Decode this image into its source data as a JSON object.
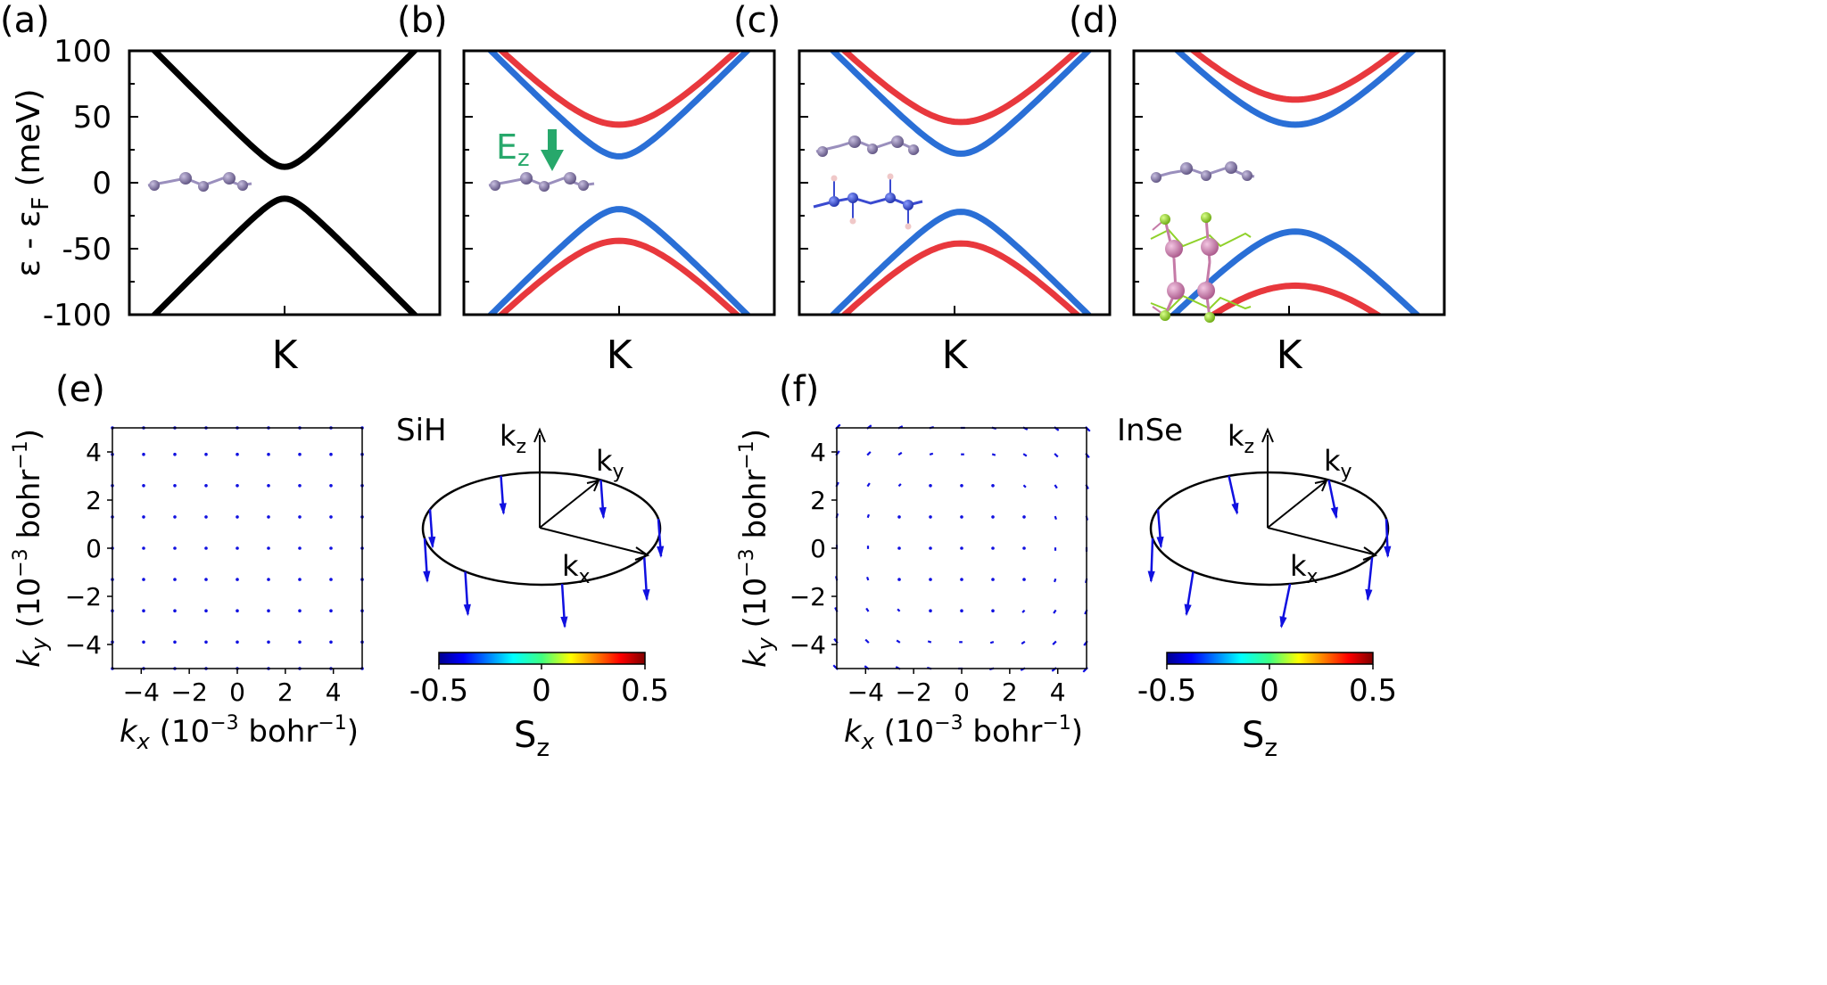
{
  "chart_data": [
    {
      "panel": "a",
      "label": "(a)",
      "type": "line",
      "ylabel": "ε - ε",
      "ylabel_sub": "F",
      "ylabel_unit": " (meV)",
      "ylim": [
        -100,
        100
      ],
      "yticks": [
        "100",
        "50",
        "0",
        "-50",
        "-100"
      ],
      "xlabel": "K",
      "series": [
        {
          "name": "conduction",
          "color": "#000000",
          "gap": 12,
          "xoff": 0.0,
          "left": 100,
          "right": 100
        },
        {
          "name": "valence",
          "color": "#000000",
          "gap": -12,
          "xoff": 0.0,
          "left": -100,
          "right": -100
        }
      ]
    },
    {
      "panel": "b",
      "label": "(b)",
      "type": "line",
      "xlabel": "K",
      "ylim": [
        -100,
        100
      ],
      "annotation": {
        "text": "E",
        "sub": "z"
      },
      "series": [
        {
          "name": "conduction spin-up",
          "color": "#e8383d",
          "gap": 44,
          "xoff": 0.0,
          "left": 100,
          "right": 100
        },
        {
          "name": "conduction spin-down",
          "color": "#2a6fd6",
          "gap": 20,
          "xoff": 0.0,
          "left": 100,
          "right": 100
        },
        {
          "name": "valence spin-down",
          "color": "#2a6fd6",
          "gap": -20,
          "xoff": 0.0,
          "left": -100,
          "right": -100
        },
        {
          "name": "valence spin-up",
          "color": "#e8383d",
          "gap": -44,
          "xoff": 0.0,
          "left": -100,
          "right": -100
        }
      ]
    },
    {
      "panel": "c",
      "label": "(c)",
      "type": "line",
      "xlabel": "K",
      "ylim": [
        -100,
        100
      ],
      "series": [
        {
          "name": "conduction spin-up",
          "color": "#e8383d",
          "gap": 46,
          "xoff": 0.02,
          "left": 100,
          "right": 100
        },
        {
          "name": "conduction spin-down",
          "color": "#2a6fd6",
          "gap": 22,
          "xoff": 0.02,
          "left": 100,
          "right": 100
        },
        {
          "name": "valence spin-down",
          "color": "#2a6fd6",
          "gap": -22,
          "xoff": 0.02,
          "left": -100,
          "right": -100
        },
        {
          "name": "valence spin-up",
          "color": "#e8383d",
          "gap": -46,
          "xoff": 0.02,
          "left": -100,
          "right": -100
        }
      ]
    },
    {
      "panel": "d",
      "label": "(d)",
      "type": "line",
      "xlabel": "K",
      "ylim": [
        -100,
        100
      ],
      "series": [
        {
          "name": "conduction spin-up",
          "color": "#e8383d",
          "gap": 63,
          "xoff": 0.02,
          "left": 100,
          "right": 100
        },
        {
          "name": "conduction spin-down",
          "color": "#2a6fd6",
          "gap": 44,
          "xoff": 0.02,
          "left": 100,
          "right": 100
        },
        {
          "name": "valence spin-down",
          "color": "#2a6fd6",
          "gap": -37,
          "xoff": 0.02,
          "left": -100,
          "right": -100
        },
        {
          "name": "valence spin-up",
          "color": "#e8383d",
          "gap": -78,
          "xoff": 0.02,
          "left": -100,
          "right": -100
        }
      ]
    },
    {
      "panel": "e",
      "label": "(e)",
      "type": "quiver",
      "xlabel": "k",
      "xlabel_sub": "x",
      "xlabel_rest": " (10",
      "xlabel_sup": "−3",
      "xlabel_end": " bohr",
      "xlabel_sup2": "−1",
      "xlabel_close": ")",
      "ylabel": "k",
      "ylabel_sub": "y",
      "xlim": [
        -5.2,
        5.2
      ],
      "ylim": [
        -5,
        5
      ],
      "xticks": [
        "−4",
        "−2",
        "0",
        "2",
        "4"
      ],
      "yticks": [
        "4",
        "2",
        "0",
        "−2",
        "−4"
      ],
      "grid": [
        -5.2,
        -3.9,
        -2.6,
        -1.3,
        0,
        1.3,
        2.6,
        3.9,
        5.2
      ],
      "arrow_scale": 0.02
    },
    {
      "panel": "f",
      "label": "(f)",
      "type": "quiver",
      "xlim": [
        -5.2,
        5.2
      ],
      "ylim": [
        -5,
        5
      ],
      "xticks": [
        "−4",
        "−2",
        "0",
        "2",
        "4"
      ],
      "yticks": [
        "4",
        "2",
        "0",
        "−2",
        "−4"
      ],
      "grid": [
        -5.2,
        -3.9,
        -2.6,
        -1.3,
        0,
        1.3,
        2.6,
        3.9,
        5.2
      ],
      "arrow_scale": 0.16
    }
  ],
  "schematics": [
    {
      "material": "SiH",
      "kz": "k",
      "kz_sub": "z",
      "ky": "k",
      "ky_sub": "y",
      "kx": "k",
      "kx_sub": "x",
      "tilt": false
    },
    {
      "material": "InSe",
      "kz": "k",
      "kz_sub": "z",
      "ky": "k",
      "ky_sub": "y",
      "kx": "k",
      "kx_sub": "x",
      "tilt": true
    }
  ],
  "colorbars": [
    {
      "ticks": [
        "-0.5",
        "0",
        "0.5"
      ],
      "label": "S",
      "label_sub": "z"
    },
    {
      "ticks": [
        "-0.5",
        "0",
        "0.5"
      ],
      "label": "S",
      "label_sub": "z"
    }
  ],
  "colors": {
    "spin_up": "#e8383d",
    "spin_down": "#2a6fd6",
    "field_arrow": "#27a86b",
    "silicene_atom": "#7a6d9a",
    "nitrogen_atom": "#2b3fc4",
    "hydrogen_atom": "#f0c8c8",
    "indium_atom": "#c57aa7",
    "selenium_atom": "#8fd12a",
    "quiver": "#1010e0"
  }
}
